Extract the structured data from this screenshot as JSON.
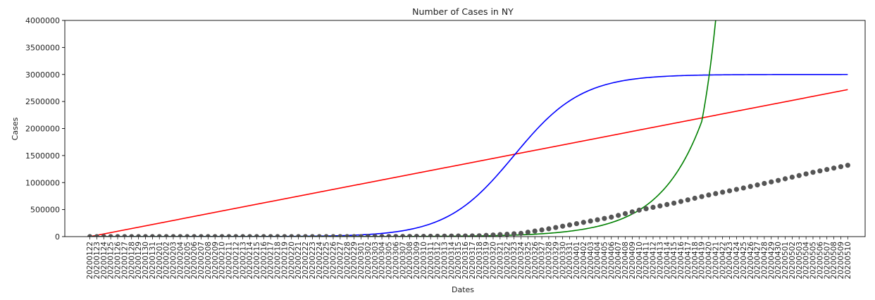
{
  "chart_data": {
    "type": "line",
    "title": "Number of Cases in NY",
    "xlabel": "Dates",
    "ylabel": "Cases",
    "ylim": [
      0,
      4000000
    ],
    "yticks": [
      0,
      500000,
      1000000,
      1500000,
      2000000,
      2500000,
      3000000,
      3500000,
      4000000
    ],
    "x_start_date": "2020-01-22",
    "x_end_date": "2020-05-10",
    "grid": false,
    "series": [
      {
        "kind": "line",
        "color": "#ff0000",
        "form": "linear",
        "y_start": 0,
        "y_end": 2720000
      },
      {
        "kind": "line",
        "color": "#0000ff",
        "form": "logistic",
        "cap": 3000000,
        "midpoint_date": "2020-03-23",
        "rate": 0.205
      },
      {
        "kind": "line",
        "color": "#008000",
        "form": "exponential",
        "points_date_value": [
          [
            "2020-03-31",
            100000
          ],
          [
            "2020-04-10",
            490000
          ],
          [
            "2020-04-19",
            2130000
          ],
          [
            "2020-04-21",
            4000000
          ]
        ]
      },
      {
        "kind": "scatter",
        "color": "#555555",
        "form": "observed",
        "points_date_value": [
          [
            "2020-01-22",
            0
          ],
          [
            "2020-03-01",
            0
          ],
          [
            "2020-03-10",
            5000
          ],
          [
            "2020-03-18",
            15000
          ],
          [
            "2020-03-24",
            60000
          ],
          [
            "2020-03-28",
            145000
          ],
          [
            "2020-04-01",
            240000
          ],
          [
            "2020-04-06",
            360000
          ],
          [
            "2020-04-10",
            490000
          ],
          [
            "2020-04-15",
            620000
          ],
          [
            "2020-04-20",
            770000
          ],
          [
            "2020-04-25",
            900000
          ],
          [
            "2020-04-30",
            1040000
          ],
          [
            "2020-05-05",
            1190000
          ],
          [
            "2020-05-10",
            1320000
          ]
        ]
      }
    ]
  }
}
